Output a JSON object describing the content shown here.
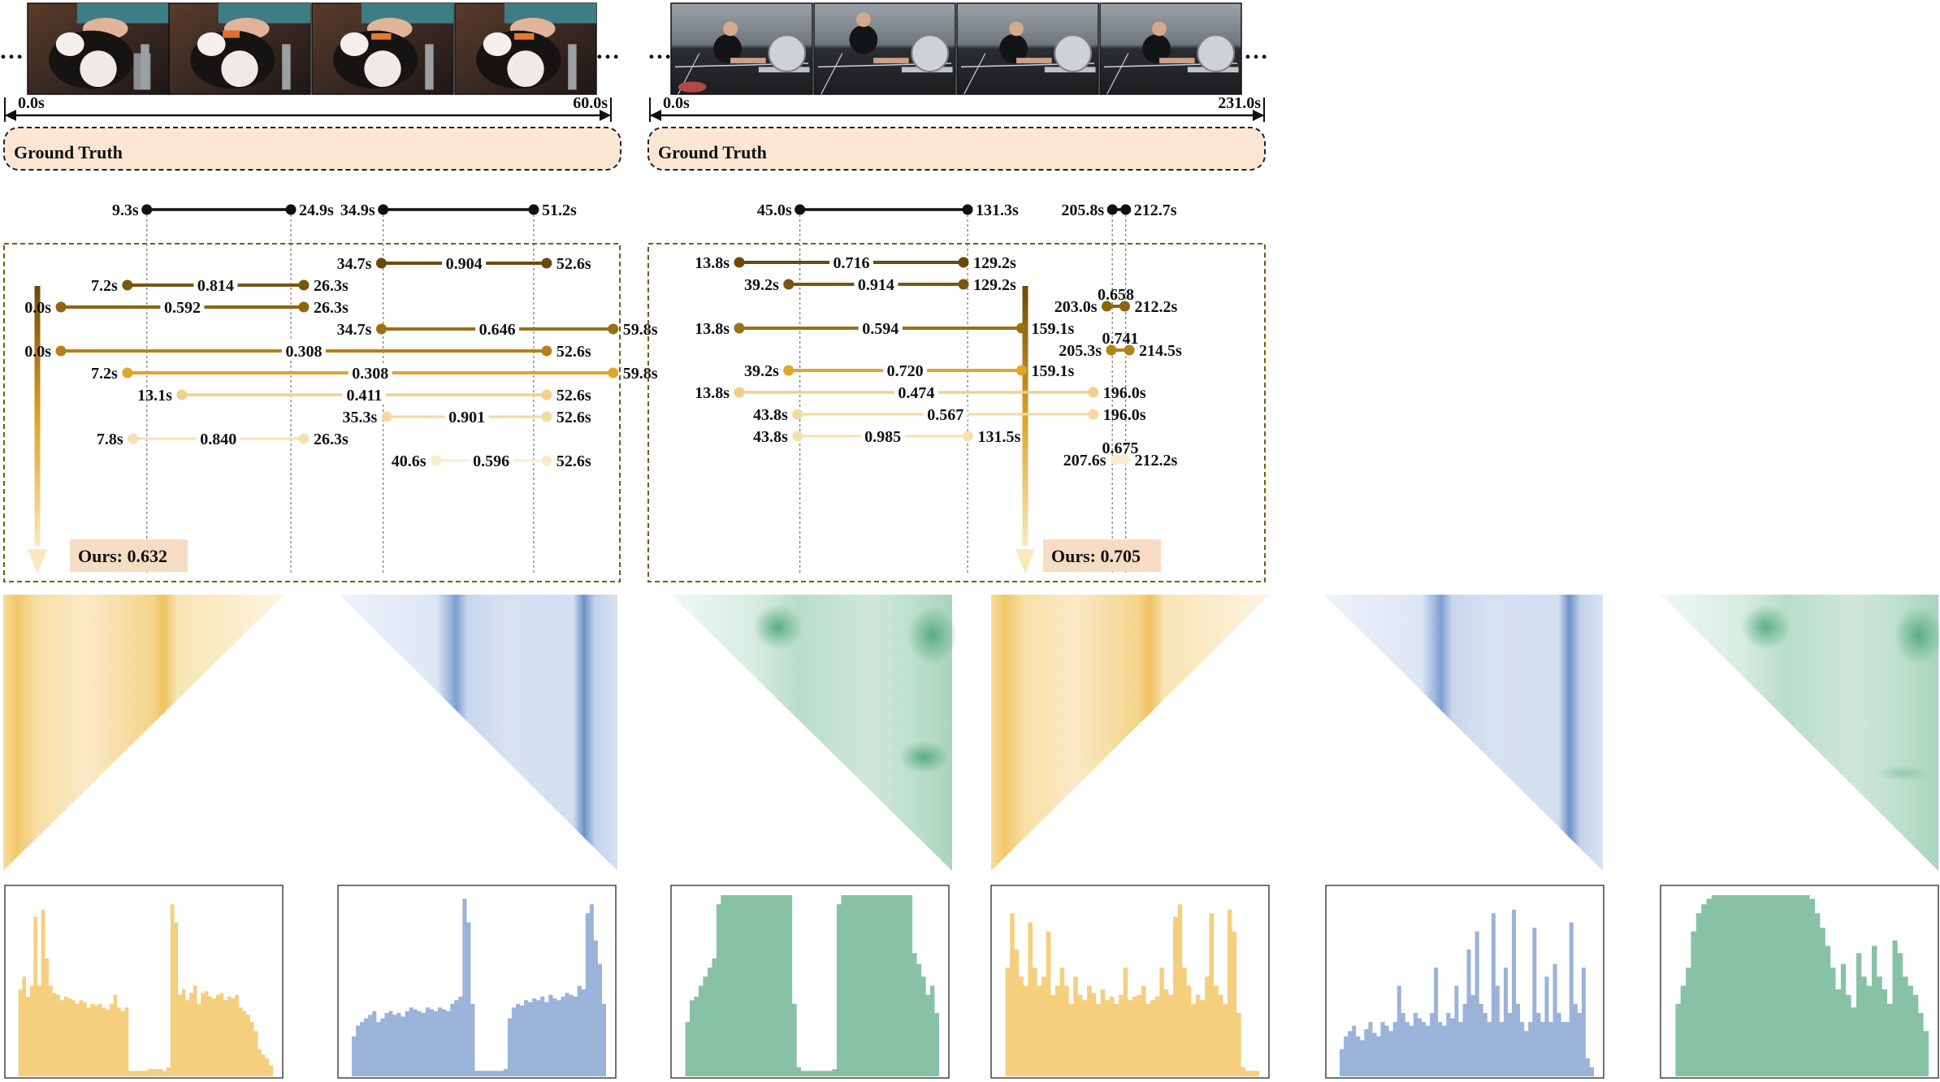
{
  "panels": [
    {
      "id": "left",
      "duration": 60.0,
      "start_label": "0.0s",
      "end_label": "60.0s",
      "ellipsis": "…",
      "frames": [
        "frame-cat-1",
        "frame-cat-2",
        "frame-cat-3",
        "frame-cat-4"
      ],
      "ground_truth_title": "Ground Truth",
      "ground_truth": [
        {
          "start": 9.3,
          "end": 24.9,
          "start_label": "9.3s",
          "end_label": "24.9s"
        },
        {
          "start": 34.9,
          "end": 51.2,
          "start_label": "34.9s",
          "end_label": "51.2s"
        }
      ],
      "predictions": [
        {
          "start": 34.7,
          "end": 52.6,
          "start_label": "34.7s",
          "end_label": "52.6s",
          "score": "0.904"
        },
        {
          "start": 7.2,
          "end": 26.3,
          "start_label": "7.2s",
          "end_label": "26.3s",
          "score": "0.814"
        },
        {
          "start": 0.0,
          "end": 26.3,
          "start_label": "0.0s",
          "end_label": "26.3s",
          "score": "0.592"
        },
        {
          "start": 34.7,
          "end": 59.8,
          "start_label": "34.7s",
          "end_label": "59.8s",
          "score": "0.646"
        },
        {
          "start": 0.0,
          "end": 52.6,
          "start_label": "0.0s",
          "end_label": "52.6s",
          "score": "0.308"
        },
        {
          "start": 7.2,
          "end": 59.8,
          "start_label": "7.2s",
          "end_label": "59.8s",
          "score": "0.308"
        },
        {
          "start": 13.1,
          "end": 52.6,
          "start_label": "13.1s",
          "end_label": "52.6s",
          "score": "0.411"
        },
        {
          "start": 35.3,
          "end": 52.6,
          "start_label": "35.3s",
          "end_label": "52.6s",
          "score": "0.901"
        },
        {
          "start": 7.8,
          "end": 26.3,
          "start_label": "7.8s",
          "end_label": "26.3s",
          "score": "0.840"
        },
        {
          "start": 40.6,
          "end": 52.6,
          "start_label": "40.6s",
          "end_label": "52.6s",
          "score": "0.596"
        }
      ],
      "ours_label": "Ours: 0.632",
      "histograms": {
        "yellow": [
          0,
          0.48,
          0.55,
          0.44,
          0.5,
          0.88,
          0.5,
          0.92,
          0.65,
          0.5,
          0.46,
          0.45,
          0.42,
          0.44,
          0.43,
          0.42,
          0.4,
          0.42,
          0.41,
          0.38,
          0.4,
          0.39,
          0.4,
          0.38,
          0.37,
          0.4,
          0.45,
          0.38,
          0.36,
          0.38,
          0.03,
          0.03,
          0.03,
          0.03,
          0.03,
          0.04,
          0.04,
          0.04,
          0.04,
          0.03,
          0.05,
          0.95,
          0.85,
          0.45,
          0.48,
          0.42,
          0.46,
          0.5,
          0.4,
          0.46,
          0.47,
          0.44,
          0.43,
          0.45,
          0.46,
          0.42,
          0.44,
          0.43,
          0.45,
          0.38,
          0.36,
          0.34,
          0.3,
          0.25,
          0.15,
          0.12,
          0.1,
          0.06
        ],
        "blue": [
          0,
          0.22,
          0.28,
          0.3,
          0.32,
          0.34,
          0.36,
          0.3,
          0.32,
          0.35,
          0.36,
          0.34,
          0.35,
          0.33,
          0.36,
          0.38,
          0.37,
          0.36,
          0.35,
          0.38,
          0.37,
          0.36,
          0.38,
          0.37,
          0.36,
          0.4,
          0.42,
          0.44,
          0.98,
          0.85,
          0.4,
          0.03,
          0.03,
          0.03,
          0.03,
          0.03,
          0.03,
          0.03,
          0.04,
          0.32,
          0.38,
          0.4,
          0.39,
          0.42,
          0.41,
          0.43,
          0.42,
          0.44,
          0.41,
          0.45,
          0.43,
          0.42,
          0.44,
          0.46,
          0.45,
          0.44,
          0.5,
          0.48,
          0.9,
          0.95,
          0.75,
          0.62,
          0.4
        ],
        "green": [
          0,
          0.3,
          0.42,
          0.44,
          0.5,
          0.55,
          0.6,
          0.65,
          0.95,
          1.0,
          1.0,
          1.0,
          1.0,
          1.0,
          1.0,
          1.0,
          1.0,
          1.0,
          1.0,
          1.0,
          1.0,
          1.0,
          1.0,
          1.0,
          1.0,
          0.4,
          0.05,
          0.03,
          0.03,
          0.03,
          0.03,
          0.03,
          0.03,
          0.03,
          0.04,
          0.95,
          1.0,
          1.0,
          1.0,
          1.0,
          1.0,
          1.0,
          1.0,
          1.0,
          1.0,
          1.0,
          1.0,
          1.0,
          1.0,
          1.0,
          1.0,
          1.0,
          0.68,
          0.62,
          0.55,
          0.45,
          0.5,
          0.35
        ]
      }
    },
    {
      "id": "right",
      "duration": 231.0,
      "start_label": "0.0s",
      "end_label": "231.0s",
      "ellipsis": "…",
      "frames": [
        "frame-rower-1",
        "frame-rower-2",
        "frame-rower-3",
        "frame-rower-4"
      ],
      "ground_truth_title": "Ground Truth",
      "ground_truth": [
        {
          "start": 45.0,
          "end": 131.3,
          "start_label": "45.0s",
          "end_label": "131.3s"
        },
        {
          "start": 205.8,
          "end": 212.7,
          "start_label": "205.8s",
          "end_label": "212.7s"
        }
      ],
      "predictions": [
        {
          "start": 13.8,
          "end": 129.2,
          "start_label": "13.8s",
          "end_label": "129.2s",
          "score": "0.716"
        },
        {
          "start": 39.2,
          "end": 129.2,
          "start_label": "39.2s",
          "end_label": "129.2s",
          "score": "0.914"
        },
        {
          "start": 203.0,
          "end": 212.2,
          "start_label": "203.0s",
          "end_label": "212.2s",
          "score": "0.658"
        },
        {
          "start": 13.8,
          "end": 159.1,
          "start_label": "13.8s",
          "end_label": "159.1s",
          "score": "0.594"
        },
        {
          "start": 205.3,
          "end": 214.5,
          "start_label": "205.3s",
          "end_label": "214.5s",
          "score": "0.741"
        },
        {
          "start": 39.2,
          "end": 159.1,
          "start_label": "39.2s",
          "end_label": "159.1s",
          "score": "0.720"
        },
        {
          "start": 13.8,
          "end": 196.0,
          "start_label": "13.8s",
          "end_label": "196.0s",
          "score": "0.474"
        },
        {
          "start": 43.8,
          "end": 196.0,
          "start_label": "43.8s",
          "end_label": "196.0s",
          "score": "0.567"
        },
        {
          "start": 43.8,
          "end": 131.5,
          "start_label": "43.8s",
          "end_label": "131.5s",
          "score": "0.985"
        },
        {
          "start": 207.6,
          "end": 212.2,
          "start_label": "207.6s",
          "end_label": "212.2s",
          "score": "0.675"
        }
      ],
      "ours_label": "Ours: 0.705",
      "histograms": {
        "yellow": [
          0,
          0.6,
          0.9,
          0.7,
          0.55,
          0.5,
          0.85,
          0.6,
          0.5,
          0.55,
          0.8,
          0.45,
          0.5,
          0.6,
          0.5,
          0.4,
          0.55,
          0.45,
          0.42,
          0.5,
          0.46,
          0.4,
          0.48,
          0.42,
          0.44,
          0.4,
          0.45,
          0.6,
          0.42,
          0.44,
          0.45,
          0.5,
          0.4,
          0.42,
          0.44,
          0.6,
          0.48,
          0.45,
          0.88,
          0.95,
          0.6,
          0.5,
          0.4,
          0.45,
          0.42,
          0.55,
          0.9,
          0.5,
          0.45,
          0.4,
          0.92,
          0.8,
          0.35,
          0.05,
          0.03,
          0.03,
          0.03
        ],
        "blue": [
          0,
          0.15,
          0.22,
          0.25,
          0.28,
          0.22,
          0.2,
          0.26,
          0.3,
          0.24,
          0.22,
          0.3,
          0.28,
          0.25,
          0.3,
          0.5,
          0.35,
          0.3,
          0.28,
          0.35,
          0.32,
          0.3,
          0.28,
          0.35,
          0.6,
          0.3,
          0.28,
          0.35,
          0.32,
          0.5,
          0.3,
          0.4,
          0.7,
          0.45,
          0.8,
          0.4,
          0.35,
          0.3,
          0.9,
          0.5,
          0.3,
          0.6,
          0.35,
          0.92,
          0.4,
          0.3,
          0.25,
          0.3,
          0.82,
          0.35,
          0.3,
          0.55,
          0.3,
          0.62,
          0.35,
          0.3,
          0.3,
          0.85,
          0.4,
          0.35,
          0.6,
          0.1,
          0.05
        ],
        "green": [
          0,
          0.4,
          0.5,
          0.6,
          0.8,
          0.9,
          0.95,
          0.98,
          1.0,
          1.0,
          1.0,
          1.0,
          1.0,
          1.0,
          1.0,
          1.0,
          1.0,
          1.0,
          1.0,
          1.0,
          1.0,
          1.0,
          1.0,
          1.0,
          1.0,
          1.0,
          1.0,
          0.98,
          0.9,
          0.82,
          0.72,
          0.6,
          0.48,
          0.62,
          0.45,
          0.38,
          0.68,
          0.55,
          0.5,
          0.72,
          0.55,
          0.48,
          0.4,
          0.75,
          0.68,
          0.55,
          0.5,
          0.45,
          0.35,
          0.25
        ]
      }
    }
  ],
  "colors": {
    "gt_bg": "#fbe6d4",
    "ours_bg": "#f6dcc4",
    "box_border": "#7a5a12",
    "gradient_dark": "#6a4a0c",
    "gradient_light": "#fbe8bd",
    "yellow": "#f5cf7e",
    "blue": "#9bb3d9",
    "green": "#88c2a6"
  }
}
